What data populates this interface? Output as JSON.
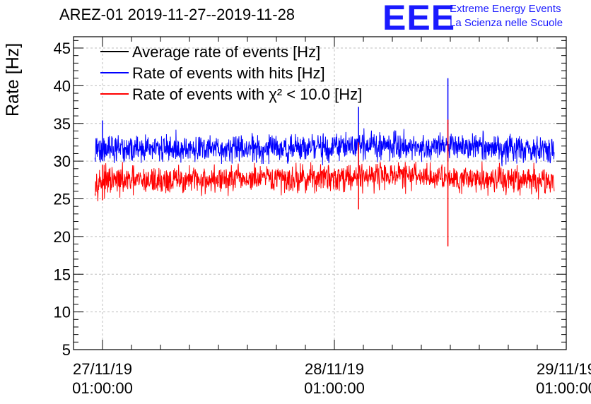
{
  "header": {
    "title": "AREZ-01 2019-11-27--2019-11-28",
    "logo_text": "EEE",
    "logo_line1": "Extreme Energy Events",
    "logo_line2": "La Scienza nelle Scuole"
  },
  "colors": {
    "average": "#000000",
    "hits": "#0000ff",
    "chi2": "#ff0000",
    "grid": "#bfbfbf",
    "logo": "#1a1aff"
  },
  "chart_data": {
    "type": "line",
    "title": "AREZ-01 2019-11-27--2019-11-28",
    "ylabel": "Rate [Hz]",
    "xlabel": "",
    "ylim": [
      5,
      46.5
    ],
    "xlim": [
      "2019-11-26 22:00",
      "2019-11-29 01:00"
    ],
    "yticks": [
      5,
      10,
      15,
      20,
      25,
      30,
      35,
      40,
      45
    ],
    "xticks": [
      {
        "date": "27/11/19",
        "time": "01:00:00",
        "x": "2019-11-27 01:00"
      },
      {
        "date": "28/11/19",
        "time": "01:00:00",
        "x": "2019-11-28 01:00"
      },
      {
        "date": "29/11/19",
        "time": "01:00:00",
        "x": "2019-11-29 01:00"
      }
    ],
    "grid": true,
    "legend_position": "top-left",
    "series": [
      {
        "name": "Average rate of events [Hz]",
        "color": "#000000",
        "start": "2019-11-27 00:13",
        "end": "2019-11-28 23:45",
        "mean": 31.6,
        "noise": 0,
        "points": []
      },
      {
        "name": "Rate of events with hits [Hz]",
        "color": "#0000ff",
        "start": "2019-11-27 00:13",
        "end": "2019-11-28 23:45",
        "mean": 31.6,
        "noise": 0.9,
        "points": [
          {
            "x": "2019-11-27 00:13",
            "y": 31.5
          },
          {
            "x": "2019-11-27 06:00",
            "y": 31.6
          },
          {
            "x": "2019-11-27 12:00",
            "y": 31.6
          },
          {
            "x": "2019-11-27 18:00",
            "y": 31.7
          },
          {
            "x": "2019-11-28 00:00",
            "y": 31.8
          },
          {
            "x": "2019-11-28 06:00",
            "y": 32.2
          },
          {
            "x": "2019-11-28 12:00",
            "y": 31.9
          },
          {
            "x": "2019-11-28 18:00",
            "y": 31.7
          },
          {
            "x": "2019-11-28 23:45",
            "y": 31.4
          }
        ],
        "spikes": [
          {
            "x": "2019-11-27 01:00",
            "high": 35.4,
            "low": 30.0
          },
          {
            "x": "2019-11-28 03:30",
            "high": 37.2,
            "low": 29.0
          },
          {
            "x": "2019-11-28 12:45",
            "high": 41.0,
            "low": 30.0
          }
        ]
      },
      {
        "name": "Rate of events with χ² < 10.0 [Hz]",
        "color": "#ff0000",
        "start": "2019-11-27 00:13",
        "end": "2019-11-28 23:45",
        "mean": 27.5,
        "noise": 0.9,
        "points": [
          {
            "x": "2019-11-27 00:13",
            "y": 27.3
          },
          {
            "x": "2019-11-27 06:00",
            "y": 27.4
          },
          {
            "x": "2019-11-27 12:00",
            "y": 27.5
          },
          {
            "x": "2019-11-27 18:00",
            "y": 27.6
          },
          {
            "x": "2019-11-28 00:00",
            "y": 27.8
          },
          {
            "x": "2019-11-28 06:00",
            "y": 28.2
          },
          {
            "x": "2019-11-28 12:00",
            "y": 27.9
          },
          {
            "x": "2019-11-28 18:00",
            "y": 27.6
          },
          {
            "x": "2019-11-28 23:45",
            "y": 27.3
          }
        ],
        "spikes": [
          {
            "x": "2019-11-27 01:00",
            "high": 29.5,
            "low": 24.8
          },
          {
            "x": "2019-11-28 03:30",
            "high": 32.5,
            "low": 23.6
          },
          {
            "x": "2019-11-28 12:45",
            "high": 35.5,
            "low": 18.7
          }
        ]
      }
    ]
  }
}
